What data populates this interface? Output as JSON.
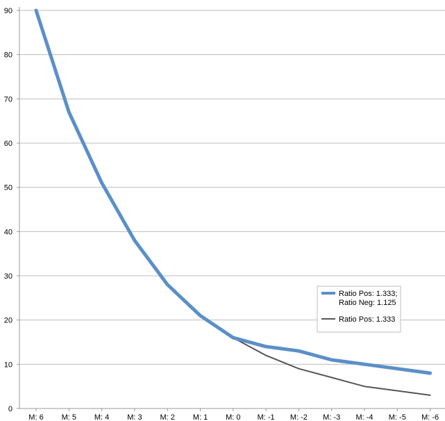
{
  "chart_data": {
    "type": "line",
    "title": "",
    "xlabel": "",
    "ylabel": "",
    "categories": [
      "M: 6",
      "M: 5",
      "M: 4",
      "M: 3",
      "M: 2",
      "M: 1",
      "M: 0",
      "M: -1",
      "M: -2",
      "M: -3",
      "M: -4",
      "M: -5",
      "M: -6"
    ],
    "yticks": [
      "0",
      "10",
      "20",
      "30",
      "40",
      "50",
      "60",
      "70",
      "80",
      "90"
    ],
    "ylim": [
      0,
      90
    ],
    "grid": true,
    "legend_position": "right",
    "series": [
      {
        "name_lines": [
          "Ratio Pos: 1.333;",
          "Ratio Neg: 1.125"
        ],
        "color": "#5b8fc9",
        "values": [
          90,
          67,
          51,
          38,
          28,
          21,
          16,
          14,
          13,
          11,
          10,
          9,
          8
        ]
      },
      {
        "name_lines": [
          "Ratio Pos: 1.333"
        ],
        "color": "#555555",
        "values": [
          90,
          67,
          51,
          38,
          28,
          21,
          16,
          12,
          9,
          7,
          5,
          4,
          3
        ]
      }
    ]
  }
}
